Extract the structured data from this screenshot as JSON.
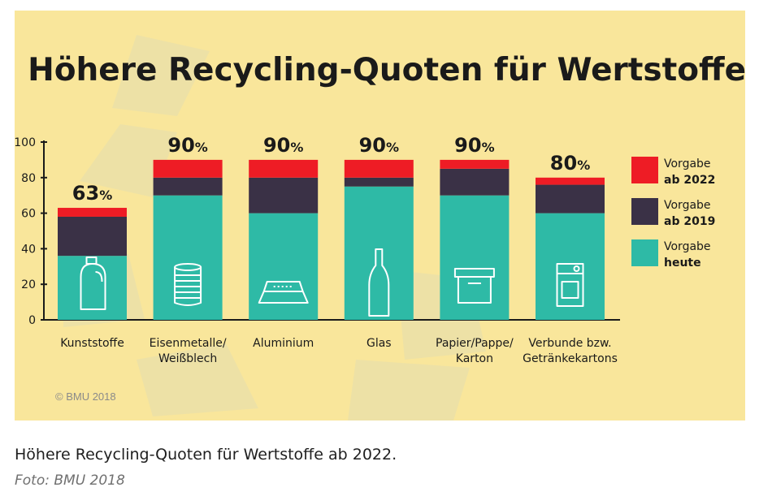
{
  "caption": "Höhere Recycling-Quoten für Wertstoffe ab 2022.",
  "photo_credit": "Foto: BMU 2018",
  "chart_data": {
    "type": "bar",
    "stacked": true,
    "title": "Höhere Recycling-Quoten für Wertstoffe!",
    "copyright": "© BMU 2018",
    "ylim": [
      0,
      100
    ],
    "yticks": [
      "0",
      "20",
      "40",
      "60",
      "80",
      "100"
    ],
    "categories": [
      "Kunststoffe",
      "Eisenmetalle/ Weißblech",
      "Aluminium",
      "Glas",
      "Papier/Pappe/ Karton",
      "Verbunde bzw. Getränkekartons"
    ],
    "category_lines": [
      [
        "Kunststoffe"
      ],
      [
        "Eisenmetalle/",
        "Weißblech"
      ],
      [
        "Aluminium"
      ],
      [
        "Glas"
      ],
      [
        "Papier/Pappe/",
        "Karton"
      ],
      [
        "Verbunde bzw.",
        "Getränkekartons"
      ]
    ],
    "totals": [
      63,
      90,
      90,
      90,
      90,
      80
    ],
    "total_labels": [
      "63%",
      "90%",
      "90%",
      "90%",
      "90%",
      "80%"
    ],
    "icons": [
      "detergent-bottle-icon",
      "tin-can-icon",
      "aluminium-tray-icon",
      "glass-bottle-icon",
      "cardboard-box-icon",
      "beverage-carton-icon"
    ],
    "series": [
      {
        "name": "Vorgabe heute",
        "legend": [
          "Vorgabe",
          "heute"
        ],
        "color": "#2ebaa6",
        "values": [
          36,
          70,
          60,
          75,
          70,
          60
        ]
      },
      {
        "name": "Vorgabe ab 2019",
        "legend": [
          "Vorgabe",
          "ab 2019"
        ],
        "color": "#3a3146",
        "values": [
          22,
          10,
          20,
          5,
          15,
          16
        ]
      },
      {
        "name": "Vorgabe ab 2022",
        "legend": [
          "Vorgabe",
          "ab 2022"
        ],
        "color": "#ee1c25",
        "values": [
          5,
          10,
          10,
          10,
          5,
          4
        ]
      }
    ],
    "legend_position": "right",
    "grid": false,
    "colors": {
      "background": "#f9e69b",
      "watermark": "#ece0a4",
      "text": "#1a1a1a"
    }
  }
}
